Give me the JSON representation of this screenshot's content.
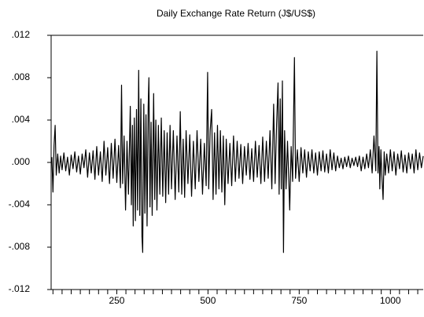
{
  "chart_data": {
    "type": "line",
    "title": "Daily Exchange Rate Return (J$/US$)",
    "color": "#000000",
    "xlim": [
      70,
      1090
    ],
    "xticks": [
      250,
      500,
      750,
      1000
    ],
    "xminorticks": [
      75,
      100,
      125,
      150,
      175,
      200,
      225,
      275,
      300,
      325,
      350,
      375,
      400,
      425,
      450,
      475,
      525,
      550,
      575,
      600,
      625,
      650,
      675,
      700,
      725,
      775,
      800,
      825,
      850,
      875,
      900,
      925,
      950,
      975,
      1025,
      1050,
      1075
    ],
    "ylim": [
      -0.012,
      0.012
    ],
    "yticks": [
      {
        "value": -0.012,
        "label": "-.012"
      },
      {
        "value": -0.008,
        "label": "-.008"
      },
      {
        "value": -0.004,
        "label": "-.004"
      },
      {
        "value": 0,
        "label": ".000"
      },
      {
        "value": 0.004,
        "label": ".004"
      },
      {
        "value": 0.008,
        "label": ".008"
      },
      {
        "value": 0.012,
        "label": ".012"
      }
    ],
    "x": [
      72,
      75,
      78,
      81,
      84,
      88,
      92,
      96,
      100,
      105,
      110,
      115,
      120,
      125,
      130,
      135,
      140,
      145,
      150,
      155,
      160,
      165,
      170,
      175,
      180,
      185,
      190,
      195,
      200,
      205,
      210,
      215,
      220,
      225,
      230,
      235,
      240,
      245,
      250,
      255,
      260,
      263,
      266,
      270,
      274,
      278,
      282,
      287,
      290,
      293,
      295,
      298,
      301,
      304,
      307,
      310,
      313,
      316,
      319,
      321,
      324,
      327,
      330,
      333,
      336,
      338,
      341,
      344,
      347,
      351,
      354,
      357,
      360,
      364,
      368,
      372,
      376,
      380,
      384,
      388,
      392,
      396,
      400,
      405,
      410,
      415,
      420,
      424,
      428,
      432,
      436,
      440,
      445,
      450,
      455,
      460,
      465,
      470,
      475,
      480,
      485,
      490,
      495,
      499,
      502,
      506,
      510,
      514,
      518,
      522,
      526,
      530,
      534,
      538,
      542,
      546,
      550,
      555,
      560,
      565,
      570,
      575,
      580,
      585,
      590,
      595,
      600,
      605,
      610,
      615,
      620,
      625,
      630,
      635,
      640,
      645,
      650,
      655,
      660,
      665,
      670,
      675,
      680,
      684,
      688,
      692,
      695,
      698,
      701,
      704,
      707,
      710,
      714,
      718,
      722,
      724,
      728,
      732,
      737,
      740,
      745,
      750,
      755,
      760,
      765,
      770,
      775,
      780,
      785,
      790,
      795,
      800,
      805,
      810,
      815,
      820,
      825,
      830,
      835,
      840,
      845,
      850,
      855,
      860,
      865,
      870,
      875,
      880,
      885,
      890,
      895,
      900,
      905,
      910,
      915,
      920,
      925,
      930,
      935,
      940,
      945,
      950,
      955,
      960,
      963,
      966,
      969,
      971,
      974,
      977,
      980,
      983,
      986,
      990,
      995,
      1000,
      1005,
      1010,
      1015,
      1020,
      1025,
      1030,
      1035,
      1040,
      1045,
      1050,
      1055,
      1060,
      1065,
      1070,
      1075,
      1080,
      1085,
      1090
    ],
    "values": [
      0.0005,
      -0.0028,
      0.0016,
      0.0035,
      -0.0012,
      0.0008,
      -0.001,
      0.0006,
      -0.0007,
      0.0009,
      -0.0008,
      0.0005,
      -0.0012,
      0.0007,
      -0.0006,
      0.001,
      -0.0009,
      0.0006,
      -0.0011,
      0.0008,
      -0.0005,
      0.0012,
      -0.0014,
      0.0009,
      -0.001,
      0.0011,
      -0.0016,
      0.0015,
      -0.0012,
      0.001,
      -0.0018,
      0.002,
      -0.0012,
      0.0014,
      -0.002,
      0.0018,
      -0.0015,
      0.0022,
      -0.0019,
      0.0016,
      -0.0024,
      0.0073,
      -0.002,
      0.0025,
      -0.0045,
      0.002,
      -0.003,
      0.0053,
      -0.004,
      0.0035,
      -0.006,
      0.0042,
      -0.0055,
      0.005,
      -0.0045,
      0.0087,
      -0.005,
      0.006,
      -0.007,
      -0.0085,
      0.0055,
      -0.0048,
      0.0045,
      -0.006,
      0.0052,
      0.008,
      -0.0042,
      0.0038,
      -0.005,
      0.0065,
      -0.0035,
      0.004,
      -0.0045,
      0.0035,
      -0.003,
      0.0042,
      -0.0032,
      0.003,
      -0.0038,
      0.0028,
      -0.003,
      0.0035,
      -0.0025,
      0.003,
      -0.0035,
      0.0025,
      -0.0028,
      0.0048,
      -0.003,
      0.0022,
      -0.0033,
      0.003,
      -0.002,
      0.0026,
      -0.0032,
      0.002,
      -0.0025,
      0.003,
      -0.0018,
      0.0022,
      -0.003,
      0.0018,
      -0.0022,
      0.0085,
      -0.0025,
      0.003,
      0.005,
      -0.0035,
      0.0028,
      -0.003,
      0.0035,
      -0.0025,
      0.003,
      -0.0028,
      0.0025,
      -0.004,
      0.0022,
      -0.002,
      0.0018,
      -0.0022,
      0.0025,
      -0.0018,
      0.002,
      -0.0015,
      0.0017,
      -0.002,
      0.0015,
      -0.0012,
      0.0018,
      -0.0016,
      0.0013,
      -0.0018,
      0.002,
      -0.0014,
      0.0016,
      -0.002,
      0.0024,
      -0.0018,
      0.002,
      -0.0015,
      0.003,
      -0.0025,
      0.0055,
      -0.002,
      0.0035,
      0.0075,
      -0.003,
      0.006,
      -0.0025,
      0.0077,
      -0.0085,
      0.003,
      -0.0025,
      0.002,
      -0.0022,
      -0.0045,
      0.0015,
      -0.0018,
      0.0099,
      -0.0015,
      0.0012,
      -0.0018,
      0.0014,
      -0.001,
      0.0012,
      -0.0014,
      0.001,
      -0.0008,
      0.0012,
      -0.001,
      0.0009,
      -0.0012,
      0.001,
      -0.0008,
      0.0011,
      -0.0009,
      0.0008,
      -0.001,
      0.0012,
      -0.0007,
      0.0009,
      -0.0008,
      0.0006,
      -0.0005,
      0.0004,
      -0.0006,
      0.0005,
      -0.0004,
      0.0006,
      -0.0005,
      0.0004,
      -0.0003,
      0.0005,
      -0.0004,
      0.0006,
      -0.0008,
      0.0005,
      -0.0006,
      0.0008,
      -0.0005,
      0.0012,
      -0.001,
      0.0025,
      -0.0008,
      0.0105,
      -0.001,
      0.0015,
      -0.0025,
      0.0012,
      -0.0015,
      -0.0035,
      0.001,
      -0.0012,
      0.0008,
      -0.001,
      0.0012,
      -0.0008,
      0.001,
      -0.0012,
      0.0008,
      -0.0006,
      0.0011,
      -0.0009,
      0.0007,
      -0.001,
      0.0009,
      -0.0006,
      0.0008,
      -0.001,
      0.0012,
      -0.0007,
      0.0009,
      -0.0005,
      0.0006
    ]
  }
}
